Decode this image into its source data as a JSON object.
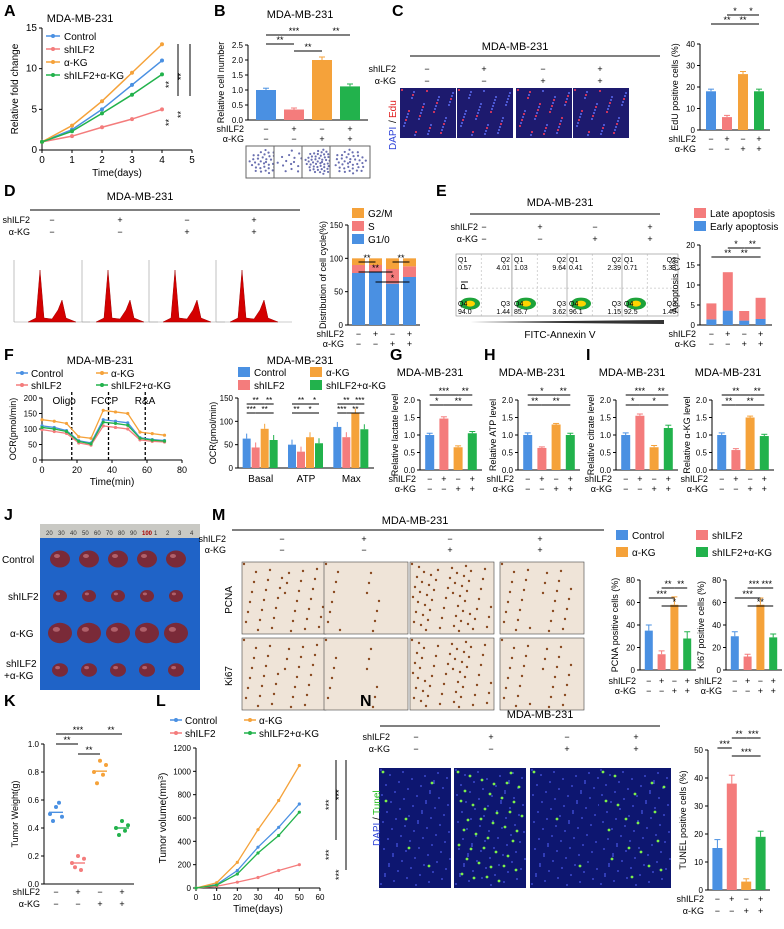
{
  "panels": {
    "A": {
      "letter": "A",
      "title": "MDA-MB-231",
      "ylabel": "Relative fold change",
      "xlabel": "Time(days)",
      "sig": [
        "**",
        "**",
        "**",
        "**"
      ]
    },
    "B": {
      "letter": "B",
      "title": "MDA-MB-231",
      "ylabel": "Relative cell number",
      "sig": [
        "***",
        "**",
        "**",
        "**"
      ]
    },
    "C": {
      "letter": "C",
      "title": "MDA-MB-231",
      "stain_dapi": "DAPI",
      "stain_sep": "/",
      "stain_marker": "Edu",
      "ylabel": "EdU positive cells (%)",
      "sig": [
        "*",
        "*",
        "**",
        "**"
      ]
    },
    "D": {
      "letter": "D",
      "title": "MDA-MB-231",
      "ylabel": "Distribution of cell cycle(%)",
      "sig": [
        "**",
        "**",
        "**",
        "*"
      ]
    },
    "E": {
      "letter": "E",
      "title": "MDA-MB-231",
      "xlabel": "FITC-Annexin V",
      "ylabel_flow": "PI",
      "ylabel": "Apoptosis (%)",
      "sig": [
        "*",
        "**",
        "**",
        "**"
      ]
    },
    "F": {
      "letter": "F",
      "title_left": "MDA-MB-231",
      "title_right": "MDA-MB-231",
      "ylabel": "OCR(pmol/min)",
      "xlabel": "Time(min)",
      "inj": [
        "Oligo",
        "FCCP",
        "R&A"
      ],
      "sig": [
        "**",
        "**",
        "***",
        "**",
        "**",
        "*",
        "**",
        "*",
        "**",
        "***",
        "***",
        "**",
        "**",
        "**"
      ]
    },
    "G": {
      "letter": "G",
      "title": "MDA-MB-231",
      "ylabel": "Relative lactate level",
      "sig": [
        "***",
        "**",
        "*",
        "**"
      ]
    },
    "H": {
      "letter": "H",
      "title": "MDA-MB-231",
      "ylabel": "Relative ATP level",
      "sig": [
        "*",
        "**",
        "**",
        "**"
      ]
    },
    "I": {
      "letter": "I",
      "title": "MDA-MB-231",
      "ylabel": "Relative citrate level",
      "ylabel2": "Relative α-KG level",
      "sig": [
        "***",
        "**",
        "*",
        "*"
      ],
      "sig2": [
        "**",
        "**",
        "**",
        "**"
      ]
    },
    "J": {
      "letter": "J",
      "rows": [
        "Control",
        "shILF2",
        "α-KG",
        "shILF2",
        "+α-KG"
      ],
      "ruler": [
        "20",
        "30",
        "40",
        "50",
        "60",
        "70",
        "80",
        "90",
        "100",
        "1",
        "2",
        "3",
        "4"
      ]
    },
    "M": {
      "letter": "M",
      "title": "MDA-MB-231",
      "rows": [
        "PCNA",
        "Ki67"
      ],
      "ylabel": "PCNA positive cells (%)",
      "ylabel2": "Ki67 positive cells (%)",
      "sig": [
        "**",
        "**",
        "***",
        "*"
      ],
      "sig2": [
        "***",
        "***",
        "***",
        "**"
      ]
    },
    "K": {
      "letter": "K",
      "ylabel": "Tumor Weight(g)",
      "sig": [
        "***",
        "**",
        "**",
        "**"
      ]
    },
    "L": {
      "letter": "L",
      "ylabel": "Tumor volume(mm",
      "ylabel_sup": "3",
      "ylabel_end": ")",
      "xlabel": "Time(days)",
      "sig": [
        "***",
        "***",
        "***",
        "***"
      ]
    },
    "N": {
      "letter": "N",
      "title": "MDA-MB-231",
      "stain_dapi": "DAPI",
      "stain_sep": "/",
      "stain_marker": "Tunel",
      "ylabel": "TUNEL positive cells (%)",
      "sig": [
        "**",
        "***",
        "***",
        "***"
      ]
    }
  },
  "conditions": {
    "row1": "shILF2",
    "row2": "α-KG",
    "plus": "+",
    "minus": "−"
  },
  "legend": {
    "control": "Control",
    "shilf2": "shILF2",
    "akg": "α-KG",
    "combo": "shILF2+α-KG",
    "g2m": "G2/M",
    "s": "S",
    "g1": "G1/0",
    "late": "Late apoptosis",
    "early": "Early apoptosis"
  },
  "colors": {
    "control": "#4a90e2",
    "shilf2": "#f47c7c",
    "akg": "#f5a23a",
    "combo": "#22b24c",
    "g2m": "#f5a23a",
    "s": "#f47c7c",
    "g1": "#4a90e2"
  },
  "flow_quadrants": [
    {
      "q1": "0.57",
      "q2": "4.01",
      "q3": "1.44",
      "q4": "94.0"
    },
    {
      "q1": "1.03",
      "q2": "9.64",
      "q3": "3.62",
      "q4": "85.7"
    },
    {
      "q1": "0.41",
      "q2": "2.39",
      "q3": "1.15",
      "q4": "96.1"
    },
    {
      "q1": "0.71",
      "q2": "5.33",
      "q3": "1.46",
      "q4": "92.5"
    }
  ],
  "chart_data": [
    {
      "panel": "A",
      "type": "line",
      "x": [
        0,
        1,
        2,
        3,
        4
      ],
      "xlim": [
        0,
        5
      ],
      "ylim": [
        0,
        15
      ],
      "yticks": [
        0,
        5,
        10,
        15
      ],
      "xticks": [
        0,
        1,
        2,
        3,
        4,
        5
      ],
      "series": [
        {
          "name": "Control",
          "values": [
            1,
            2.5,
            5,
            8,
            11
          ]
        },
        {
          "name": "shILF2",
          "values": [
            1,
            1.7,
            2.8,
            3.8,
            5
          ]
        },
        {
          "name": "α-KG",
          "values": [
            1,
            3,
            6,
            9.5,
            13
          ]
        },
        {
          "name": "shILF2+α-KG",
          "values": [
            1,
            2.3,
            4.5,
            6.8,
            9.3
          ]
        }
      ]
    },
    {
      "panel": "B",
      "type": "bar",
      "categories": [
        "Control",
        "shILF2",
        "α-KG",
        "shILF2+α-KG"
      ],
      "values": [
        1.0,
        0.35,
        2.0,
        1.12
      ],
      "errors": [
        0.06,
        0.05,
        0.1,
        0.08
      ],
      "ylim": [
        0,
        2.5
      ],
      "yticks": [
        "0.0",
        "0.5",
        "1.0",
        "1.5",
        "2.0",
        "2.5"
      ]
    },
    {
      "panel": "C",
      "type": "bar",
      "values": [
        18,
        6,
        26,
        18
      ],
      "errors": [
        1,
        0.8,
        1.2,
        1
      ],
      "ylim": [
        0,
        40
      ],
      "yticks": [
        "0",
        "10",
        "20",
        "30",
        "40"
      ]
    },
    {
      "panel": "D",
      "type": "bar",
      "stacked": true,
      "series": [
        {
          "name": "G1/0",
          "values": [
            78,
            80,
            62,
            72
          ]
        },
        {
          "name": "S",
          "values": [
            12,
            10,
            22,
            16
          ]
        },
        {
          "name": "G2/M",
          "values": [
            10,
            10,
            16,
            12
          ]
        }
      ],
      "ylim": [
        0,
        150
      ],
      "yticks": [
        "0",
        "50",
        "100",
        "150"
      ]
    },
    {
      "panel": "E",
      "type": "bar",
      "stacked": true,
      "series": [
        {
          "name": "Early apoptosis",
          "values": [
            1.4,
            3.6,
            1.1,
            1.5
          ]
        },
        {
          "name": "Late apoptosis",
          "values": [
            4,
            9.6,
            2.4,
            5.3
          ]
        }
      ],
      "ylim": [
        0,
        20
      ],
      "yticks": [
        "0",
        "5",
        "10",
        "15",
        "20"
      ]
    },
    {
      "panel": "F1",
      "type": "line",
      "x": [
        0,
        7,
        14,
        21,
        28,
        35,
        42,
        49,
        56,
        63,
        70
      ],
      "xlim": [
        0,
        80
      ],
      "ylim": [
        0,
        200
      ],
      "yticks": [
        "0",
        "50",
        "100",
        "150",
        "200"
      ],
      "xticks": [
        "0",
        "20",
        "40",
        "60",
        "80"
      ],
      "series": [
        {
          "name": "Control",
          "values": [
            110,
            105,
            95,
            62,
            55,
            130,
            125,
            120,
            72,
            66,
            63
          ]
        },
        {
          "name": "shILF2",
          "values": [
            98,
            92,
            86,
            55,
            48,
            110,
            105,
            100,
            65,
            60,
            58
          ]
        },
        {
          "name": "α-KG",
          "values": [
            130,
            125,
            118,
            75,
            70,
            160,
            155,
            150,
            90,
            85,
            80
          ]
        },
        {
          "name": "shILF2+α-KG",
          "values": [
            105,
            100,
            92,
            60,
            52,
            122,
            118,
            112,
            70,
            64,
            61
          ]
        }
      ]
    },
    {
      "panel": "F2",
      "type": "bar",
      "categories": [
        "Basal",
        "ATP",
        "Max"
      ],
      "series": [
        {
          "name": "Control",
          "values": [
            63,
            50,
            88
          ]
        },
        {
          "name": "shILF2",
          "values": [
            44,
            35,
            66
          ]
        },
        {
          "name": "α-KG",
          "values": [
            84,
            66,
            117
          ]
        },
        {
          "name": "shILF2+α-KG",
          "values": [
            60,
            53,
            83
          ]
        }
      ],
      "ylim": [
        0,
        150
      ],
      "yticks": [
        "0",
        "50",
        "100",
        "150"
      ]
    },
    {
      "panel": "G",
      "type": "bar",
      "values": [
        1.0,
        1.47,
        0.65,
        1.05
      ],
      "errors": [
        0.05,
        0.05,
        0.04,
        0.05
      ],
      "ylim": [
        0,
        2.0
      ],
      "yticks": [
        "0.0",
        "0.5",
        "1.0",
        "1.5",
        "2.0"
      ]
    },
    {
      "panel": "H",
      "type": "bar",
      "values": [
        1.0,
        0.63,
        1.3,
        1.0
      ],
      "errors": [
        0.06,
        0.03,
        0.03,
        0.05
      ],
      "ylim": [
        0,
        2.0
      ],
      "yticks": [
        "0.0",
        "0.5",
        "1.0",
        "1.5",
        "2.0"
      ]
    },
    {
      "panel": "I1",
      "type": "bar",
      "values": [
        1.0,
        1.55,
        0.65,
        1.2
      ],
      "errors": [
        0.06,
        0.05,
        0.05,
        0.08
      ],
      "ylim": [
        0,
        2.0
      ],
      "yticks": [
        "0.0",
        "0.5",
        "1.0",
        "1.5",
        "2.0"
      ]
    },
    {
      "panel": "I2",
      "type": "bar",
      "values": [
        1.0,
        0.57,
        1.5,
        0.97
      ],
      "errors": [
        0.06,
        0.04,
        0.04,
        0.05
      ],
      "ylim": [
        0,
        2.0
      ],
      "yticks": [
        "0.0",
        "0.5",
        "1.0",
        "1.5",
        "2.0"
      ]
    },
    {
      "panel": "M1",
      "type": "bar",
      "values": [
        35,
        14,
        58,
        28
      ],
      "errors": [
        5,
        3,
        7,
        6
      ],
      "ylim": [
        0,
        80
      ],
      "yticks": [
        "0",
        "20",
        "40",
        "60",
        "80"
      ]
    },
    {
      "panel": "M2",
      "type": "bar",
      "values": [
        30,
        12,
        58,
        29
      ],
      "errors": [
        4,
        2,
        6,
        3
      ],
      "ylim": [
        0,
        80
      ],
      "yticks": [
        "0",
        "20",
        "40",
        "60",
        "80"
      ]
    },
    {
      "panel": "K",
      "type": "scatter",
      "categories": [
        "Control",
        "shILF2",
        "α-KG",
        "shILF2+α-KG"
      ],
      "points": [
        [
          0.5,
          0.45,
          0.55,
          0.58,
          0.48
        ],
        [
          0.15,
          0.12,
          0.2,
          0.1,
          0.18
        ],
        [
          0.8,
          0.72,
          0.88,
          0.78,
          0.85
        ],
        [
          0.4,
          0.35,
          0.45,
          0.38,
          0.42
        ]
      ],
      "ylim": [
        0,
        1.0
      ],
      "yticks": [
        "0.0",
        "0.2",
        "0.4",
        "0.6",
        "0.8",
        "1.0"
      ]
    },
    {
      "panel": "L",
      "type": "line",
      "x": [
        0,
        10,
        20,
        30,
        40,
        50
      ],
      "xlim": [
        0,
        60
      ],
      "ylim": [
        0,
        1200
      ],
      "yticks": [
        "0",
        "200",
        "400",
        "600",
        "800",
        "1000",
        "1200"
      ],
      "xticks": [
        "0",
        "10",
        "20",
        "30",
        "40",
        "50",
        "60"
      ],
      "series": [
        {
          "name": "Control",
          "values": [
            0,
            30,
            150,
            350,
            520,
            720
          ]
        },
        {
          "name": "shILF2",
          "values": [
            0,
            15,
            50,
            90,
            150,
            200
          ]
        },
        {
          "name": "α-KG",
          "values": [
            0,
            45,
            220,
            500,
            750,
            1050
          ]
        },
        {
          "name": "shILF2+α-KG",
          "values": [
            0,
            25,
            120,
            300,
            450,
            650
          ]
        }
      ]
    },
    {
      "panel": "N",
      "type": "bar",
      "values": [
        15,
        38,
        3,
        19
      ],
      "errors": [
        3,
        3,
        1,
        2
      ],
      "ylim": [
        0,
        50
      ],
      "yticks": [
        "0",
        "10",
        "20",
        "30",
        "40",
        "50"
      ]
    }
  ]
}
